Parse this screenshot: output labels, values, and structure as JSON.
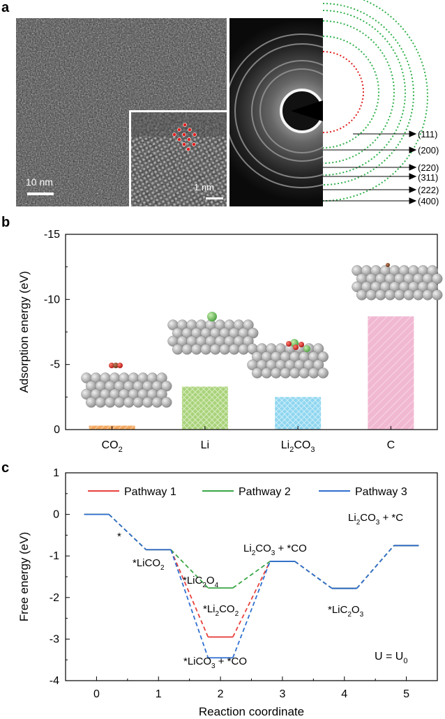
{
  "panel_a": {
    "letter": "a",
    "tem_scalebar": "10 nm",
    "hrtem_scalebar": "1 nm",
    "saed_rings": [
      "(111)",
      "(200)",
      "(220)",
      "(311)",
      "(222)",
      "(400)"
    ]
  },
  "panel_b": {
    "letter": "b"
  },
  "panel_c": {
    "letter": "c",
    "U_label": "U = U",
    "U_sub": "0",
    "labels": {
      "star": "*",
      "licO2": "*LiCO",
      "licO2_sub": "2",
      "lic2o4_pre": "*LiC",
      "lic2o4_s1": "2",
      "lic2o4_mid": "O",
      "lic2o4_s2": "4",
      "li2co2_pre": "*Li",
      "li2co2_s1": "2",
      "li2co2_mid": "CO",
      "li2co2_s2": "2",
      "lico3": "*LiCO",
      "lico3_sub": "3",
      "lico3_tail": " + *CO",
      "li2co3co_pre": "Li",
      "li2co3co_s1": "2",
      "li2co3co_mid": "CO",
      "li2co3co_s2": "3",
      "li2co3co_tail": " + *CO",
      "lic2o3_pre": "*LiC",
      "lic2o3_s1": "2",
      "lic2o3_mid": "O",
      "lic2o3_s2": "3",
      "li2co3c_pre": "Li",
      "li2co3c_s1": "2",
      "li2co3c_mid": "CO",
      "li2co3c_s2": "3",
      "li2co3c_tail": " + *C"
    }
  },
  "colors": {
    "pathway1": "#e8413c",
    "pathway2": "#3aa645",
    "pathway3": "#2f6fd0",
    "bar_co2": "#f3a860",
    "bar_li": "#a9d37a",
    "bar_li2co3": "#8fd6f0",
    "bar_c": "#f1b8d2",
    "ring_green": "#2fb04a",
    "ring_red": "#e02020"
  },
  "chart_data": [
    {
      "type": "bar",
      "panel": "b",
      "ylabel": "Adsorption energy (eV)",
      "ylim": [
        0,
        -15
      ],
      "yticks": [
        "-15",
        "-10",
        "-5",
        "0"
      ],
      "categories": [
        "CO2",
        "Li",
        "Li2CO3",
        "C"
      ],
      "category_labels": [
        {
          "main": "CO",
          "sub": "2",
          "tail": ""
        },
        {
          "main": "Li",
          "sub": "",
          "tail": ""
        },
        {
          "main": "Li",
          "sub": "2",
          "tail": "CO",
          "sub2": "3"
        },
        {
          "main": "C",
          "sub": "",
          "tail": ""
        }
      ],
      "values": [
        -0.3,
        -3.3,
        -2.5,
        -8.7
      ],
      "grid": false
    },
    {
      "type": "line",
      "panel": "c",
      "xlabel": "Reaction coordinate",
      "ylabel": "Free energy (eV)",
      "xlim": [
        -0.5,
        5.5
      ],
      "ylim": [
        -4,
        1
      ],
      "xticks": [
        "0",
        "1",
        "2",
        "3",
        "4",
        "5"
      ],
      "yticks": [
        "1",
        "0",
        "-1",
        "-2",
        "-3",
        "-4"
      ],
      "legend_position": "top",
      "series": [
        {
          "name": "Pathway 1",
          "x": [
            0,
            1,
            2,
            3,
            4,
            5
          ],
          "values": [
            0,
            -0.85,
            -2.95,
            -1.13,
            -1.78,
            -0.75
          ]
        },
        {
          "name": "Pathway 2",
          "x": [
            0,
            1,
            2,
            3,
            4,
            5
          ],
          "values": [
            0,
            -0.85,
            -1.77,
            -1.13,
            -1.78,
            -0.75
          ]
        },
        {
          "name": "Pathway 3",
          "x": [
            0,
            1,
            2,
            3,
            4,
            5
          ],
          "values": [
            0,
            -0.85,
            -3.45,
            -1.13,
            -1.78,
            -0.75
          ]
        }
      ]
    }
  ]
}
